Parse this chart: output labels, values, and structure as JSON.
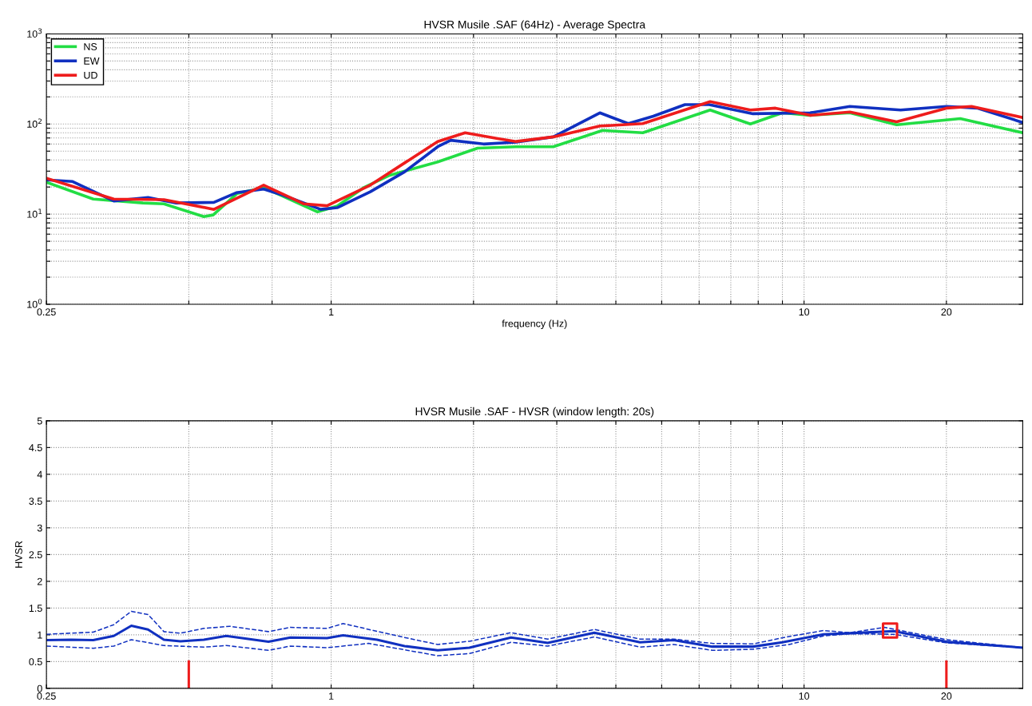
{
  "chart_data": [
    {
      "type": "line",
      "title": "HVSR Musile .SAF (64Hz) - Average Spectra",
      "xlabel": "frequency (Hz)",
      "log": "xy",
      "grid": true,
      "legend": "top left",
      "xlim": [
        0.25,
        29
      ],
      "xticks": [
        0.25,
        {
          "value": 0.5,
          "label": null
        },
        {
          "value": 0.75,
          "label": null
        },
        1,
        {
          "value": 2,
          "label": null
        },
        {
          "value": 3,
          "label": null
        },
        {
          "value": 4,
          "label": null
        },
        {
          "value": 5,
          "label": null
        },
        {
          "value": 6,
          "label": null
        },
        {
          "value": 7,
          "label": null
        },
        {
          "value": 8,
          "label": null
        },
        {
          "value": 9,
          "label": null
        },
        10,
        20
      ],
      "ylim": [
        1,
        1000
      ],
      "yticks": [
        {
          "value": 1,
          "label": "10$^{0}$"
        },
        {
          "value": 2,
          "label": null
        },
        {
          "value": 3,
          "label": null
        },
        {
          "value": 4,
          "label": null
        },
        {
          "value": 5,
          "label": null
        },
        {
          "value": 6,
          "label": null
        },
        {
          "value": 7,
          "label": null
        },
        {
          "value": 8,
          "label": null
        },
        {
          "value": 9,
          "label": null
        },
        {
          "value": 10,
          "label": "10$^{1}$"
        },
        {
          "value": 20,
          "label": null
        },
        {
          "value": 30,
          "label": null
        },
        {
          "value": 40,
          "label": null
        },
        {
          "value": 50,
          "label": null
        },
        {
          "value": 60,
          "label": null
        },
        {
          "value": 70,
          "label": null
        },
        {
          "value": 80,
          "label": null
        },
        {
          "value": 90,
          "label": null
        },
        {
          "value": 100,
          "label": "10$^{2}$"
        },
        {
          "value": 200,
          "label": null
        },
        {
          "value": 300,
          "label": null
        },
        {
          "value": 400,
          "label": null
        },
        {
          "value": 500,
          "label": null
        },
        {
          "value": 600,
          "label": null
        },
        {
          "value": 700,
          "label": null
        },
        {
          "value": 800,
          "label": null
        },
        {
          "value": 900,
          "label": null
        },
        {
          "value": 1000,
          "label": "10$^{3}$"
        }
      ],
      "series": [
        {
          "name": "NS",
          "color": "#22dd44",
          "x": [
            0.25,
            0.314,
            0.4,
            0.443,
            0.538,
            0.563,
            0.633,
            0.72,
            0.78,
            0.936,
            1.03,
            1.17,
            1.33,
            1.68,
            2.04,
            2.46,
            2.95,
            3.75,
            4.56,
            6.33,
            7.7,
            9.0,
            10.3,
            12.5,
            15.7,
            21.4,
            29
          ],
          "values": [
            22.6,
            14.7,
            13.3,
            13,
            9.4,
            9.8,
            17,
            19.6,
            16.3,
            10.6,
            12.3,
            19.6,
            27,
            38,
            54,
            56,
            56,
            85,
            80,
            143,
            100,
            133,
            125,
            133,
            98,
            115,
            80
          ]
        },
        {
          "name": "EW",
          "color": "#1030c0",
          "x": [
            0.25,
            0.284,
            0.347,
            0.41,
            0.47,
            0.565,
            0.63,
            0.72,
            0.79,
            0.95,
            1.03,
            1.21,
            1.43,
            1.68,
            1.79,
            2.1,
            2.46,
            2.95,
            3.7,
            4.25,
            4.8,
            5.6,
            6.3,
            7.8,
            10.3,
            12.5,
            16,
            20,
            23.3,
            29
          ],
          "values": [
            24,
            23,
            14,
            15.3,
            13.3,
            13.5,
            17.3,
            19,
            16.3,
            11.3,
            11.8,
            17.7,
            29.5,
            56,
            66,
            60,
            63,
            72,
            133,
            101,
            122,
            164,
            164,
            130,
            133,
            157,
            143,
            157,
            150,
            104
          ]
        },
        {
          "name": "UD",
          "color": "#ee1c1c",
          "x": [
            0.25,
            0.347,
            0.443,
            0.565,
            0.72,
            0.876,
            0.98,
            1.21,
            1.68,
            1.92,
            2.25,
            2.46,
            2.95,
            3.7,
            4.56,
            6.33,
            7.7,
            8.7,
            10.3,
            12.5,
            15.7,
            20,
            22.6,
            29
          ],
          "values": [
            25,
            14.7,
            14.5,
            11.3,
            21,
            13,
            12.4,
            21,
            64,
            80,
            69,
            64,
            72,
            95,
            101,
            177,
            143,
            150,
            125,
            136,
            106,
            150,
            157,
            118
          ]
        }
      ]
    },
    {
      "type": "line",
      "title": "HVSR Musile .SAF - HVSR (window length: 20s)",
      "ylabel": "HVSR",
      "log": "x",
      "grid": true,
      "xlim": [
        0.25,
        29
      ],
      "xticks": [
        0.25,
        {
          "value": 0.5,
          "label": null
        },
        {
          "value": 0.75,
          "label": null
        },
        1,
        {
          "value": 2,
          "label": null
        },
        {
          "value": 3,
          "label": null
        },
        {
          "value": 4,
          "label": null
        },
        {
          "value": 5,
          "label": null
        },
        {
          "value": 6,
          "label": null
        },
        {
          "value": 7,
          "label": null
        },
        {
          "value": 8,
          "label": null
        },
        {
          "value": 9,
          "label": null
        },
        10,
        20
      ],
      "ylim": [
        0,
        5
      ],
      "yticks": [
        0,
        0.5,
        1,
        1.5,
        2,
        2.5,
        3,
        3.5,
        4,
        4.5,
        5
      ],
      "series": [
        {
          "color": "#1030c0",
          "line_style": "solid",
          "x": [
            0.25,
            0.282,
            0.314,
            0.347,
            0.378,
            0.41,
            0.443,
            0.48,
            0.538,
            0.6,
            0.737,
            0.82,
            0.98,
            1.06,
            1.25,
            1.43,
            1.68,
            1.96,
            2.4,
            2.87,
            3.6,
            4.5,
            5.3,
            6.4,
            7.8,
            9.0,
            11,
            12.5,
            15.5,
            20,
            29
          ],
          "values": [
            0.9,
            0.91,
            0.9,
            0.98,
            1.17,
            1.1,
            0.91,
            0.88,
            0.91,
            0.98,
            0.87,
            0.95,
            0.94,
            0.99,
            0.91,
            0.79,
            0.71,
            0.76,
            0.95,
            0.85,
            1.04,
            0.86,
            0.9,
            0.78,
            0.78,
            0.86,
            1.01,
            1.03,
            1.07,
            0.87,
            0.76
          ]
        },
        {
          "color": "#1030c0",
          "line_style": "dashed",
          "x": [
            0.25,
            0.314,
            0.347,
            0.378,
            0.41,
            0.443,
            0.48,
            0.538,
            0.61,
            0.737,
            0.82,
            0.98,
            1.06,
            1.43,
            1.68,
            1.96,
            2.4,
            2.87,
            3.6,
            4.5,
            5.3,
            6.4,
            7.8,
            9.3,
            11,
            12.5,
            14.8,
            20,
            29
          ],
          "values": [
            1.01,
            1.05,
            1.19,
            1.44,
            1.38,
            1.06,
            1.03,
            1.12,
            1.16,
            1.06,
            1.14,
            1.12,
            1.21,
            0.95,
            0.82,
            0.88,
            1.04,
            0.92,
            1.1,
            0.92,
            0.92,
            0.84,
            0.83,
            0.97,
            1.08,
            1.04,
            1.14,
            0.91,
            0.76
          ]
        },
        {
          "color": "#1030c0",
          "line_style": "dashed",
          "x": [
            0.25,
            0.314,
            0.347,
            0.378,
            0.443,
            0.538,
            0.6,
            0.737,
            0.82,
            0.98,
            1.2,
            1.68,
            1.96,
            2.4,
            2.87,
            3.6,
            4.5,
            5.3,
            6.4,
            7.8,
            9.3,
            11,
            12.5,
            15.5,
            20,
            29
          ],
          "values": [
            0.79,
            0.75,
            0.79,
            0.91,
            0.8,
            0.77,
            0.8,
            0.71,
            0.79,
            0.76,
            0.84,
            0.61,
            0.65,
            0.86,
            0.79,
            0.96,
            0.77,
            0.82,
            0.71,
            0.73,
            0.82,
            0.98,
            1.02,
            1.01,
            0.85,
            0.76
          ]
        },
        {
          "type": "scatter",
          "color": "#ee1c1c",
          "marker": "square",
          "x": [
            15.2
          ],
          "values": [
            1.08
          ]
        },
        {
          "color": "#ee1c1c",
          "line_style": "solid",
          "x": [
            0.5,
            0.5
          ],
          "values": [
            0,
            0.5
          ]
        },
        {
          "color": "#ee1c1c",
          "line_style": "solid",
          "x": [
            20,
            20
          ],
          "values": [
            0,
            0.5
          ]
        }
      ]
    }
  ]
}
